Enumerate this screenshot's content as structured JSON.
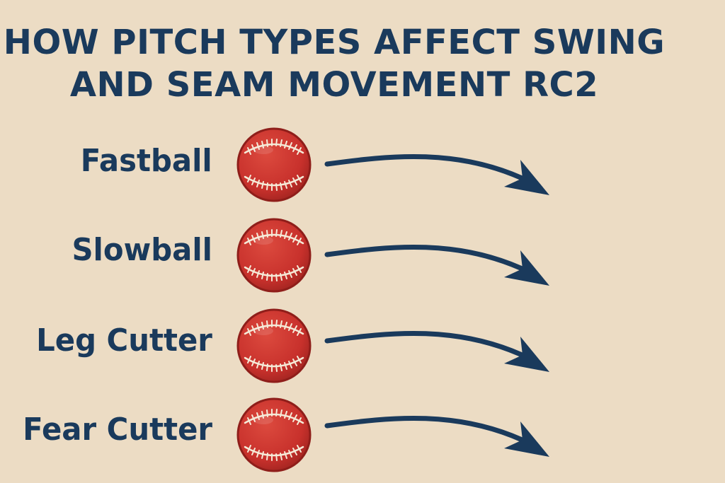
{
  "title": {
    "line1": "HOW PITCH TYPES AFFECT SWING",
    "line2": "AND SEAM MOVEMENT RC2"
  },
  "pitches": [
    {
      "label": "Fastball"
    },
    {
      "label": "Slowball"
    },
    {
      "label": "Leg Cutter"
    },
    {
      "label": "Fear Cutter"
    }
  ],
  "colors": {
    "background": "#ecdcc4",
    "text": "#1a3a5c",
    "ball": "#c8312c",
    "seam": "#f5ead8",
    "arrow": "#1a3a5c"
  },
  "icons": {
    "ball": "cricket-ball-icon",
    "arrow": "curved-arrow-icon"
  }
}
